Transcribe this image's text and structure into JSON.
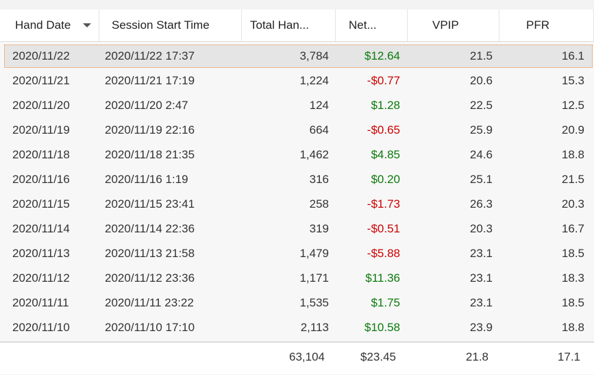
{
  "table": {
    "columns": [
      "Hand Date",
      "Session Start Time",
      "Total Han...",
      "Net...",
      "VPIP",
      "PFR"
    ],
    "rows": [
      [
        "2020/11/22",
        "2020/11/22 17:37",
        "3,784",
        "$12.64",
        "21.5",
        "16.1"
      ],
      [
        "2020/11/21",
        "2020/11/21 17:19",
        "1,224",
        "-$0.77",
        "20.6",
        "15.3"
      ],
      [
        "2020/11/20",
        "2020/11/20 2:47",
        "124",
        "$1.28",
        "22.5",
        "12.5"
      ],
      [
        "2020/11/19",
        "2020/11/19 22:16",
        "664",
        "-$0.65",
        "25.9",
        "20.9"
      ],
      [
        "2020/11/18",
        "2020/11/18 21:35",
        "1,462",
        "$4.85",
        "24.6",
        "18.8"
      ],
      [
        "2020/11/16",
        "2020/11/16 1:19",
        "316",
        "$0.20",
        "25.1",
        "21.5"
      ],
      [
        "2020/11/15",
        "2020/11/15 23:41",
        "258",
        "-$1.73",
        "26.3",
        "20.3"
      ],
      [
        "2020/11/14",
        "2020/11/14 22:36",
        "319",
        "-$0.51",
        "20.3",
        "16.7"
      ],
      [
        "2020/11/13",
        "2020/11/13 21:58",
        "1,479",
        "-$5.88",
        "23.1",
        "18.5"
      ],
      [
        "2020/11/12",
        "2020/11/12 23:36",
        "1,171",
        "$11.36",
        "23.1",
        "18.3"
      ],
      [
        "2020/11/11",
        "2020/11/11 23:22",
        "1,535",
        "$1.75",
        "23.1",
        "18.5"
      ],
      [
        "2020/11/10",
        "2020/11/10 17:10",
        "2,113",
        "$10.58",
        "23.9",
        "18.8"
      ]
    ],
    "totals": [
      "63,104",
      "$23.45",
      "21.8",
      "17.1"
    ]
  }
}
